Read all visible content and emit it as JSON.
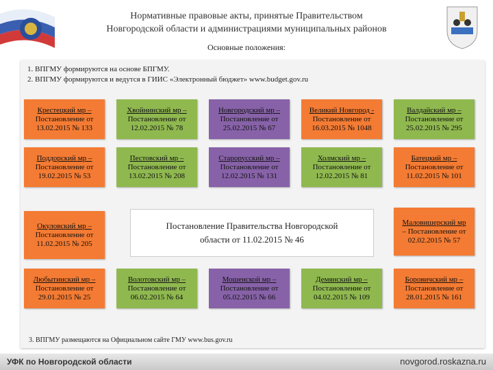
{
  "header": {
    "title_line1": "Нормативные правовые акты, принятые Правительством",
    "title_line2": "Новгородской области и администрациями муниципальных районов",
    "subtitle": "Основные положения:"
  },
  "list": [
    "1.  ВПГМУ формируются на основе БПГМУ.",
    "2.  ВПГМУ формируются и ведутся в ГИИС «Электронный бюджет» www.budget.gov.ru"
  ],
  "boxes": [
    {
      "link": "Крестецкий мр –",
      "text": "Постановление от 13.02.2015 № 133"
    },
    {
      "link": "Хвойнинский мр –",
      "text": "Постановление от 12.02.2015 № 78"
    },
    {
      "link": "Новгородский мр –",
      "text": "Постановление от 25.02.2015 № 67"
    },
    {
      "link": "Великий Новгород -",
      "text": "Постановление от 16.03.2015 № 1048"
    },
    {
      "link": "Валдайский мр –",
      "text": "Постановление от 25.02.2015 № 295"
    },
    {
      "link": "Поддорский мр –",
      "text": "Постановление от 19.02.2015 № 53"
    },
    {
      "link": "Пестовский мр –",
      "text": "Постановление от 13.02.2015 № 208"
    },
    {
      "link": "Старорусский мр –",
      "text": "Постановление от 12.02.2015 № 131"
    },
    {
      "link": "Холмский мр –",
      "text": "Постановление от 12.02.2015 № 81"
    },
    {
      "link": "Батецкий мр –",
      "text": "Постановление от 11.02.2015 № 101"
    },
    {
      "link": "Окуловский мр –",
      "text": "Постановление от 11.02.2015 № 205"
    },
    {
      "link": "Маловишерский мр",
      "text": "– Постановление от 02.02.2015 № 57"
    },
    {
      "link": "Любытинский мр –",
      "text": "Постановление от 29.01.2015 № 25"
    },
    {
      "link": "Волотовский мр –",
      "text": "Постановление от 06.02.2015 № 64"
    },
    {
      "link": "Мошенской мр –",
      "text": "Постановление от 05.02.2015 № 66"
    },
    {
      "link": "Демянский мр –",
      "text": "Постановление от 04.02.2015 № 109"
    },
    {
      "link": "Боровичский мр –",
      "text": "Постановление от 28.01.2015 № 161"
    }
  ],
  "center_box": "Постановление Правительства Новгородской области от 11.02.2015 № 46",
  "note": "3. ВПГМУ размещаются на Официальном сайте ГМУ www.bus.gov.ru",
  "footer": {
    "left": "УФК по Новгородской области",
    "right": "novgorod.roskazna.ru"
  }
}
